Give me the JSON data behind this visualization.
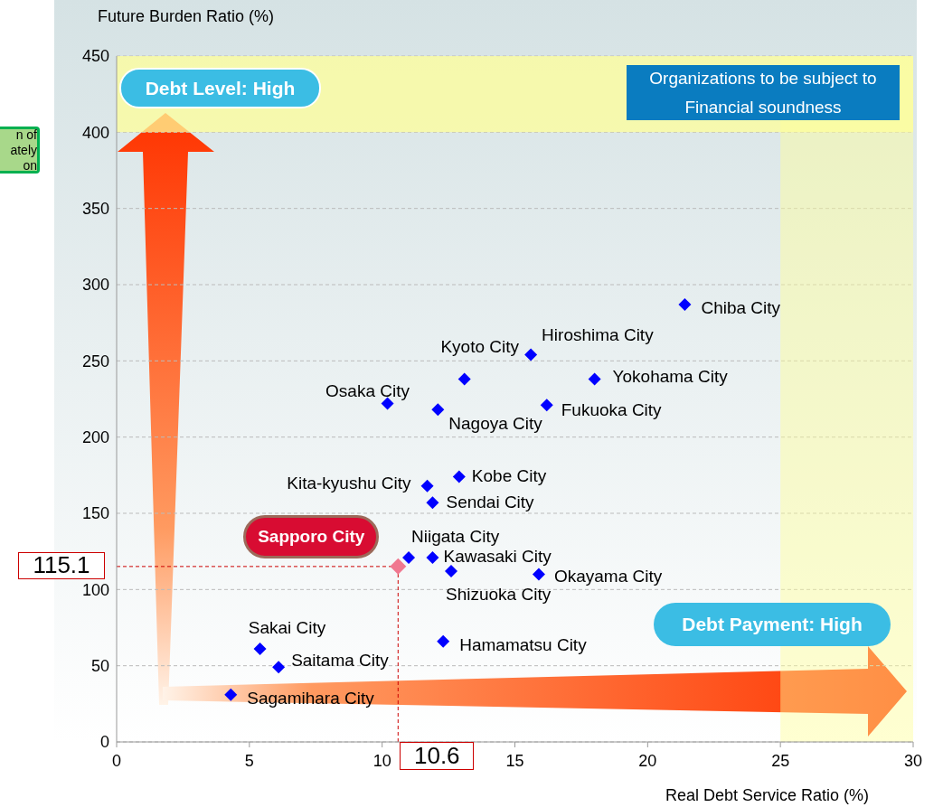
{
  "chart_data": {
    "type": "scatter",
    "xlabel": "Real Debt Service Ratio (%)",
    "ylabel": "Future Burden Ratio (%)",
    "series": [
      {
        "color": "#0000ff",
        "x": [
          21.4,
          15.6,
          13.1,
          18.0,
          10.2,
          12.1,
          16.2,
          11.7,
          12.9,
          11.9,
          11.0,
          11.9,
          12.6,
          15.9,
          5.4,
          6.1,
          4.3,
          12.3
        ],
        "values": [
          287,
          254,
          238,
          238,
          222,
          218,
          221,
          168,
          174,
          157,
          121,
          121,
          112,
          110,
          61,
          49,
          31,
          66
        ],
        "value_labels": [
          "Chiba City",
          "Hiroshima City",
          "Kyoto City",
          "Yokohama City",
          "Osaka City",
          "Nagoya City",
          "Fukuoka City",
          "Kita-kyushu City",
          "Kobe City",
          "Sendai City",
          "Niigata City",
          "Kawasaki City",
          "Shizuoka City",
          "Okayama City",
          "Sakai City",
          "Saitama City",
          "Sagamihara City",
          "Hamamatsu City"
        ]
      },
      {
        "color": "#f07890",
        "x": [
          10.6
        ],
        "values": [
          115.1
        ]
      }
    ],
    "xlim": [
      0,
      30
    ],
    "ylim": [
      0,
      450
    ],
    "xticks": [
      0,
      5,
      10,
      15,
      20,
      25,
      30
    ],
    "yticks": [
      0,
      50,
      100,
      150,
      200,
      250,
      300,
      350,
      400,
      450
    ],
    "grid": "y",
    "marker": "diamond",
    "bands": [
      {
        "axis": "y",
        "from": 400,
        "to": 450,
        "color": "#ffff99"
      },
      {
        "axis": "x",
        "from": 25,
        "to": 30,
        "color": "#ffff99"
      }
    ],
    "ref_lines": [
      {
        "axis": "y",
        "value": 115.1,
        "label": "115.1",
        "color": "#cc0000",
        "line_style": "dashed"
      },
      {
        "axis": "x",
        "value": 10.6,
        "label": "10.6",
        "color": "#cc0000",
        "line_style": "dashed"
      }
    ],
    "annotations": [
      "Debt Level:  High",
      "Organizations to be subject to Financial soundness",
      "Debt Payment:  High",
      "n of\nately\non",
      {
        "text": "Sapporo City",
        "x": 10.6,
        "y": 115.1
      }
    ]
  }
}
